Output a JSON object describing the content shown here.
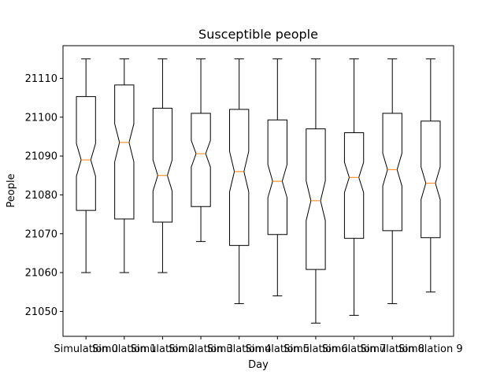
{
  "chart_data": {
    "type": "box",
    "title": "Susceptible people",
    "xlabel": "Day",
    "ylabel": "People",
    "ylim": [
      21043.6,
      21118.4
    ],
    "yticks": [
      21050,
      21060,
      21070,
      21080,
      21090,
      21100,
      21110
    ],
    "notched": true,
    "grid": false,
    "categories": [
      "Simulation 0",
      "Simulation 1",
      "Simulation 2",
      "Simulation 3",
      "Simulation 4",
      "Simulation 5",
      "Simulation 6",
      "Simulation 7",
      "Simulation 8",
      "Simulation 9"
    ],
    "boxes": [
      {
        "whisker_low": 21060,
        "q1": 21076.0,
        "median": 21089.0,
        "q3": 21105.3,
        "whisker_high": 21115,
        "notch_low": 21084.8,
        "notch_high": 21093.2
      },
      {
        "whisker_low": 21060,
        "q1": 21073.8,
        "median": 21093.5,
        "q3": 21108.3,
        "whisker_high": 21115,
        "notch_low": 21088.5,
        "notch_high": 21098.3
      },
      {
        "whisker_low": 21060,
        "q1": 21073.0,
        "median": 21085.0,
        "q3": 21102.3,
        "whisker_high": 21115,
        "notch_low": 21081.0,
        "notch_high": 21089.0
      },
      {
        "whisker_low": 21068,
        "q1": 21077.0,
        "median": 21090.6,
        "q3": 21101.0,
        "whisker_high": 21115,
        "notch_low": 21087.2,
        "notch_high": 21094.0
      },
      {
        "whisker_low": 21052,
        "q1": 21067.0,
        "median": 21086.0,
        "q3": 21102.0,
        "whisker_high": 21115,
        "notch_low": 21080.8,
        "notch_high": 21091.2
      },
      {
        "whisker_low": 21054,
        "q1": 21069.8,
        "median": 21083.5,
        "q3": 21099.3,
        "whisker_high": 21115,
        "notch_low": 21079.3,
        "notch_high": 21087.8
      },
      {
        "whisker_low": 21047,
        "q1": 21060.8,
        "median": 21078.5,
        "q3": 21097.0,
        "whisker_high": 21115,
        "notch_low": 21073.4,
        "notch_high": 21083.6
      },
      {
        "whisker_low": 21049,
        "q1": 21068.8,
        "median": 21084.5,
        "q3": 21096.0,
        "whisker_high": 21115,
        "notch_low": 21080.6,
        "notch_high": 21088.4
      },
      {
        "whisker_low": 21052,
        "q1": 21070.8,
        "median": 21086.5,
        "q3": 21101.0,
        "whisker_high": 21115,
        "notch_low": 21082.3,
        "notch_high": 21090.7
      },
      {
        "whisker_low": 21055,
        "q1": 21069.0,
        "median": 21083.0,
        "q3": 21099.0,
        "whisker_high": 21115,
        "notch_low": 21078.8,
        "notch_high": 21087.2
      }
    ],
    "colors": {
      "box": "#000000",
      "median": "#ff7f0e"
    }
  }
}
